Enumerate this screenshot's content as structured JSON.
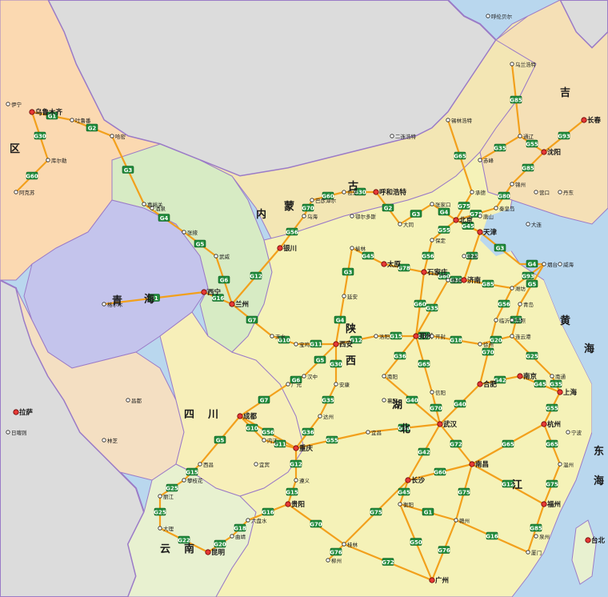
{
  "colors": {
    "sea": "#b9d7ee",
    "foreign": "#dcdcdc",
    "border": "#9b7bc7",
    "highway": "#f2a01c",
    "shield": "#1f8a3a",
    "xinjiang": "#fbd9b1",
    "qinghai": "#c4c4ec",
    "gansu": "#d7ebc4",
    "neimenggu": "#f3e6b4",
    "tibet": "#f4dfc2",
    "sichuan": "#f7efb9",
    "east": "#f5f2b8",
    "south": "#e8f1d0",
    "northeast": "#f5e0b6"
  },
  "regions": [
    {
      "name": "区",
      "id": "r1"
    },
    {
      "name": "青",
      "id": "r2"
    },
    {
      "name": "海",
      "id": "r3"
    },
    {
      "name": "内",
      "id": "r4"
    },
    {
      "name": "蒙",
      "id": "r5"
    },
    {
      "name": "古",
      "id": "r6"
    },
    {
      "name": "四",
      "id": "r7"
    },
    {
      "name": "川",
      "id": "r8"
    },
    {
      "name": "云",
      "id": "r9"
    },
    {
      "name": "南",
      "id": "r10"
    },
    {
      "name": "陕",
      "id": "r11"
    },
    {
      "name": "西",
      "id": "r12"
    },
    {
      "name": "湖",
      "id": "r13"
    },
    {
      "name": "北",
      "id": "r14"
    },
    {
      "name": "江",
      "id": "r15"
    },
    {
      "name": "东",
      "id": "r16"
    },
    {
      "name": "海",
      "id": "r17"
    },
    {
      "name": "黄",
      "id": "r18"
    },
    {
      "name": "海",
      "id": "r19"
    },
    {
      "name": "吉",
      "id": "r20"
    }
  ],
  "cities": [
    {
      "name": "乌鲁木齐",
      "major": true
    },
    {
      "name": "呼和浩特",
      "major": true
    },
    {
      "name": "银川",
      "major": true
    },
    {
      "name": "兰州",
      "major": true
    },
    {
      "name": "西宁",
      "major": true
    },
    {
      "name": "太原",
      "major": true
    },
    {
      "name": "石家庄",
      "major": true
    },
    {
      "name": "北京",
      "major": true
    },
    {
      "name": "天津",
      "major": true
    },
    {
      "name": "济南",
      "major": true
    },
    {
      "name": "郑州",
      "major": true
    },
    {
      "name": "西安",
      "major": true
    },
    {
      "name": "成都",
      "major": true
    },
    {
      "name": "重庆",
      "major": true
    },
    {
      "name": "贵阳",
      "major": true
    },
    {
      "name": "昆明",
      "major": true
    },
    {
      "name": "武汉",
      "major": true
    },
    {
      "name": "长沙",
      "major": true
    },
    {
      "name": "南昌",
      "major": true
    },
    {
      "name": "合肥",
      "major": true
    },
    {
      "name": "南京",
      "major": true
    },
    {
      "name": "上海",
      "major": true
    },
    {
      "name": "杭州",
      "major": true
    },
    {
      "name": "福州",
      "major": true
    },
    {
      "name": "广州",
      "major": true
    },
    {
      "name": "沈阳",
      "major": true
    },
    {
      "name": "长春",
      "major": true
    },
    {
      "name": "拉萨",
      "major": true
    },
    {
      "name": "台北",
      "major": true
    },
    {
      "name": "大连",
      "major": false
    },
    {
      "name": "青岛",
      "major": false
    },
    {
      "name": "包头",
      "major": false
    },
    {
      "name": "鄂尔多斯",
      "major": false
    },
    {
      "name": "榆林",
      "major": false
    },
    {
      "name": "延安",
      "major": false
    },
    {
      "name": "大同",
      "major": false
    },
    {
      "name": "张家口",
      "major": false
    },
    {
      "name": "宝鸡",
      "major": false
    },
    {
      "name": "天水",
      "major": false
    },
    {
      "name": "汉中",
      "major": false
    },
    {
      "name": "安康",
      "major": false
    },
    {
      "name": "襄阳",
      "major": false
    },
    {
      "name": "宜昌",
      "major": false
    },
    {
      "name": "信阳",
      "major": false
    },
    {
      "name": "南阳",
      "major": false
    },
    {
      "name": "洛阳",
      "major": false
    },
    {
      "name": "开封",
      "major": false
    },
    {
      "name": "徐州",
      "major": false
    },
    {
      "name": "连云港",
      "major": false
    },
    {
      "name": "南通",
      "major": false
    },
    {
      "name": "温州",
      "major": false
    },
    {
      "name": "宁波",
      "major": false
    },
    {
      "name": "厦门",
      "major": false
    },
    {
      "name": "泉州",
      "major": false
    },
    {
      "name": "赣州",
      "major": false
    },
    {
      "name": "衡阳",
      "major": false
    },
    {
      "name": "桂林",
      "major": false
    },
    {
      "name": "柳州",
      "major": false
    },
    {
      "name": "遵义",
      "major": false
    },
    {
      "name": "六盘水",
      "major": false
    },
    {
      "name": "曲靖",
      "major": false
    },
    {
      "name": "大理",
      "major": false
    },
    {
      "name": "丽江",
      "major": false
    },
    {
      "name": "攀枝花",
      "major": false
    },
    {
      "name": "西昌",
      "major": false
    },
    {
      "name": "内江",
      "major": false
    },
    {
      "name": "宜宾",
      "major": false
    },
    {
      "name": "达州",
      "major": false
    },
    {
      "name": "广元",
      "major": false
    },
    {
      "name": "格尔木",
      "major": false
    },
    {
      "name": "酒泉",
      "major": false
    },
    {
      "name": "嘉峪关",
      "major": false
    },
    {
      "name": "张掖",
      "major": false
    },
    {
      "name": "武威",
      "major": false
    },
    {
      "name": "哈密",
      "major": false
    },
    {
      "name": "吐鲁番",
      "major": false
    },
    {
      "name": "伊宁",
      "major": false
    },
    {
      "name": "库尔勒",
      "major": false
    },
    {
      "name": "阿克苏",
      "major": false
    },
    {
      "name": "日喀则",
      "major": false
    },
    {
      "name": "林芝",
      "major": false
    },
    {
      "name": "昌都",
      "major": false
    },
    {
      "name": "呼伦贝尔",
      "major": false
    },
    {
      "name": "乌兰浩特",
      "major": false
    },
    {
      "name": "赤峰",
      "major": false
    },
    {
      "name": "通辽",
      "major": false
    },
    {
      "name": "锡林浩特",
      "major": false
    },
    {
      "name": "二连浩特",
      "major": false
    },
    {
      "name": "乌海",
      "major": false
    },
    {
      "name": "巴彦淖尔",
      "major": false
    },
    {
      "name": "丹东",
      "major": false
    },
    {
      "name": "营口",
      "major": false
    },
    {
      "name": "锦州",
      "major": false
    },
    {
      "name": "秦皇岛",
      "major": false
    },
    {
      "name": "唐山",
      "major": false
    },
    {
      "name": "承德",
      "major": false
    },
    {
      "name": "保定",
      "major": false
    },
    {
      "name": "沧州",
      "major": false
    },
    {
      "name": "德州",
      "major": false
    },
    {
      "name": "威海",
      "major": false
    },
    {
      "name": "烟台",
      "major": false
    },
    {
      "name": "日照",
      "major": false
    },
    {
      "name": "临沂",
      "major": false
    },
    {
      "name": "潍坊",
      "major": false
    }
  ],
  "highways": [
    "G1",
    "G2",
    "G3",
    "G4",
    "G5",
    "G6",
    "G7",
    "G10",
    "G11",
    "G12",
    "G15",
    "G16",
    "G18",
    "G20",
    "G22",
    "G25",
    "G30",
    "G35",
    "G36",
    "G40",
    "G42",
    "G45",
    "G50",
    "G55",
    "G56",
    "G60",
    "G65",
    "G70",
    "G72",
    "G75",
    "G76",
    "G78",
    "G80",
    "G85",
    "G93",
    "G45",
    "G3",
    "G4",
    "G5",
    "G15",
    "G25",
    "G35",
    "G55",
    "G65",
    "G75",
    "G85",
    "G30",
    "G60",
    "G70",
    "G56",
    "G12",
    "G16"
  ]
}
